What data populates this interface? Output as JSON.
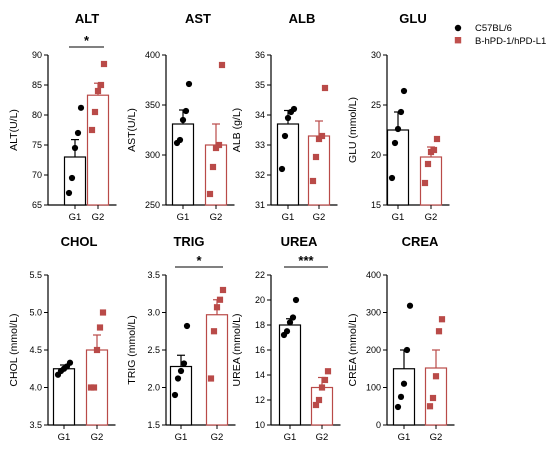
{
  "legend": [
    {
      "label": "C57BL/6",
      "marker": "circle",
      "color": "#000000"
    },
    {
      "label": "B-hPD-1/hPD-L1",
      "marker": "square",
      "color": "#c0504d"
    }
  ],
  "colors": {
    "g1": "#000000",
    "g2": "#b94a48"
  },
  "chart_data": [
    {
      "type": "bar",
      "title": "ALT",
      "ylabel": "ALT(U/L)",
      "categories": [
        "G1",
        "G2"
      ],
      "ylim": [
        65,
        90
      ],
      "yticks": [
        65,
        70,
        75,
        80,
        85,
        90
      ],
      "means": [
        73.0,
        83.3
      ],
      "sem": [
        2.9,
        2.0
      ],
      "points": [
        [
          67,
          69.5,
          74.5,
          77,
          81.2
        ],
        [
          77.5,
          80.5,
          84,
          85,
          88.5
        ]
      ],
      "significance": "*"
    },
    {
      "type": "bar",
      "title": "AST",
      "ylabel": "AST(U/L)",
      "categories": [
        "G1",
        "G2"
      ],
      "ylim": [
        250,
        400
      ],
      "yticks": [
        250,
        300,
        350,
        400
      ],
      "means": [
        331,
        310
      ],
      "sem": [
        14,
        21
      ],
      "points": [
        [
          312,
          315,
          335,
          344,
          371
        ],
        [
          261,
          288,
          307,
          310,
          390
        ]
      ],
      "significance": ""
    },
    {
      "type": "bar",
      "title": "ALB",
      "ylabel": "ALB (g/L)",
      "categories": [
        "G1",
        "G2"
      ],
      "ylim": [
        31,
        36
      ],
      "yticks": [
        31,
        32,
        33,
        34,
        35,
        36
      ],
      "means": [
        33.7,
        33.3
      ],
      "sem": [
        0.45,
        0.5
      ],
      "points": [
        [
          32.2,
          33.3,
          33.9,
          34.1,
          34.2
        ],
        [
          31.8,
          32.6,
          33.2,
          33.3,
          34.9
        ]
      ],
      "significance": ""
    },
    {
      "type": "bar",
      "title": "GLU",
      "ylabel": "GLU (mmol/L)",
      "categories": [
        "G1",
        "G2"
      ],
      "ylim": [
        15,
        30
      ],
      "yticks": [
        15,
        20,
        25,
        30
      ],
      "means": [
        22.5,
        19.8
      ],
      "sem": [
        1.8,
        1.0
      ],
      "points": [
        [
          17.7,
          21.2,
          22.6,
          24.3,
          26.4
        ],
        [
          17.2,
          19.1,
          20.3,
          20.5,
          21.6
        ]
      ],
      "significance": ""
    },
    {
      "type": "bar",
      "title": "CHOL",
      "ylabel": "CHOL (mmol/L)",
      "categories": [
        "G1",
        "G2"
      ],
      "ylim": [
        3.5,
        5.5
      ],
      "yticks": [
        3.5,
        4.0,
        4.5,
        5.0,
        5.5
      ],
      "means": [
        4.25,
        4.5
      ],
      "sem": [
        0.05,
        0.2
      ],
      "points": [
        [
          4.17,
          4.22,
          4.25,
          4.28,
          4.33
        ],
        [
          4.0,
          4.0,
          4.5,
          4.8,
          5.0
        ]
      ],
      "significance": ""
    },
    {
      "type": "bar",
      "title": "TRIG",
      "ylabel": "TRIG (mmol/L)",
      "categories": [
        "G1",
        "G2"
      ],
      "ylim": [
        1.5,
        3.5
      ],
      "yticks": [
        1.5,
        2.0,
        2.5,
        3.0,
        3.5
      ],
      "means": [
        2.28,
        2.97
      ],
      "sem": [
        0.15,
        0.2
      ],
      "points": [
        [
          1.9,
          2.12,
          2.22,
          2.32,
          2.82
        ],
        [
          2.12,
          2.75,
          3.07,
          3.17,
          3.3
        ]
      ],
      "significance": "*"
    },
    {
      "type": "bar",
      "title": "UREA",
      "ylabel": "UREA (mmol/L)",
      "categories": [
        "G1",
        "G2"
      ],
      "ylim": [
        10,
        22
      ],
      "yticks": [
        10,
        12,
        14,
        16,
        18,
        20,
        22
      ],
      "means": [
        18.0,
        13.0
      ],
      "sem": [
        0.5,
        0.8
      ],
      "points": [
        [
          17.2,
          17.5,
          18.2,
          18.6,
          20.0
        ],
        [
          11.6,
          12.0,
          13.0,
          13.6,
          14.3
        ]
      ],
      "significance": "***"
    },
    {
      "type": "bar",
      "title": "CREA",
      "ylabel": "CREA (mmol/L)",
      "categories": [
        "G1",
        "G2"
      ],
      "ylim": [
        0,
        400
      ],
      "yticks": [
        0,
        100,
        200,
        300,
        400
      ],
      "means": [
        150,
        152
      ],
      "sem": [
        50,
        48
      ],
      "points": [
        [
          48,
          75,
          110,
          200,
          318
        ],
        [
          50,
          72,
          130,
          250,
          282
        ]
      ],
      "significance": ""
    }
  ]
}
